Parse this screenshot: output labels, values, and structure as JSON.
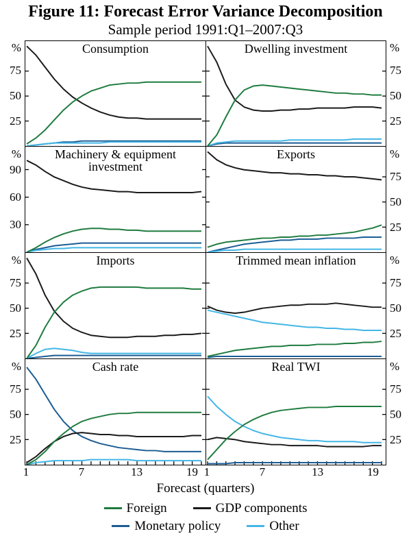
{
  "figure": {
    "title": "Figure 11: Forecast Error Variance Decomposition",
    "subtitle": "Sample period 1991:Q1–2007:Q3"
  },
  "x_axis": {
    "label": "Forecast (quarters)",
    "tick_labels": [
      1,
      7,
      13,
      19
    ],
    "range": [
      1,
      20
    ]
  },
  "colors": {
    "foreign": "#1e7b3e",
    "gdp_components": "#1a1a1a",
    "monetary_policy": "#1b5c94",
    "other": "#43b6e6"
  },
  "legend": [
    {
      "key": "foreign",
      "label": "Foreign"
    },
    {
      "key": "gdp_components",
      "label": "GDP components"
    },
    {
      "key": "monetary_policy",
      "label": "Monetary policy"
    },
    {
      "key": "other",
      "label": "Other"
    }
  ],
  "chart_data": [
    {
      "type": "line",
      "title": "Consumption",
      "unit": "%",
      "ylim": [
        0,
        105
      ],
      "yticks": [
        25,
        50,
        75
      ],
      "series": [
        {
          "name": "Monetary policy",
          "key": "monetary_policy",
          "values": [
            0,
            1,
            2,
            3,
            4,
            4,
            5,
            5,
            5,
            5,
            5,
            5,
            5,
            5,
            5,
            5,
            5,
            5,
            5,
            5
          ]
        },
        {
          "name": "Other",
          "key": "other",
          "values": [
            0,
            1,
            2,
            3,
            3,
            3,
            3,
            3,
            3,
            4,
            4,
            4,
            4,
            4,
            4,
            4,
            4,
            4,
            4,
            4
          ]
        },
        {
          "name": "GDP components",
          "key": "gdp_components",
          "values": [
            100,
            91,
            79,
            67,
            57,
            49,
            43,
            38,
            34,
            31,
            29,
            28,
            28,
            27,
            27,
            27,
            27,
            27,
            27,
            27
          ]
        },
        {
          "name": "Foreign",
          "key": "foreign",
          "values": [
            2,
            8,
            16,
            26,
            36,
            44,
            50,
            55,
            58,
            61,
            62,
            63,
            63,
            64,
            64,
            64,
            64,
            64,
            64,
            64
          ]
        }
      ]
    },
    {
      "type": "line",
      "title": "Dwelling investment",
      "unit": "%",
      "ylim": [
        0,
        105
      ],
      "yticks": [
        25,
        50,
        75
      ],
      "series": [
        {
          "name": "Monetary policy",
          "key": "monetary_policy",
          "values": [
            0,
            2,
            3,
            3,
            3,
            3,
            3,
            3,
            3,
            3,
            3,
            3,
            3,
            3,
            3,
            3,
            3,
            3,
            3,
            3
          ]
        },
        {
          "name": "Other",
          "key": "other",
          "values": [
            0,
            3,
            4,
            5,
            5,
            5,
            5,
            5,
            5,
            6,
            6,
            6,
            6,
            6,
            6,
            6,
            7,
            7,
            7,
            7
          ]
        },
        {
          "name": "GDP components",
          "key": "gdp_components",
          "values": [
            100,
            84,
            62,
            46,
            39,
            36,
            35,
            35,
            36,
            36,
            37,
            37,
            38,
            38,
            38,
            38,
            39,
            39,
            39,
            38
          ]
        },
        {
          "name": "Foreign",
          "key": "foreign",
          "values": [
            0,
            11,
            29,
            46,
            56,
            60,
            61,
            60,
            59,
            58,
            57,
            56,
            55,
            54,
            53,
            53,
            52,
            52,
            51,
            51
          ]
        }
      ]
    },
    {
      "type": "line",
      "title": "Machinery & equipment investment",
      "unit": "%",
      "ylim": [
        0,
        115
      ],
      "yticks": [
        30,
        60,
        90
      ],
      "series": [
        {
          "name": "Monetary policy",
          "key": "monetary_policy",
          "values": [
            0,
            3,
            5,
            7,
            8,
            9,
            10,
            10,
            10,
            10,
            10,
            10,
            10,
            10,
            10,
            10,
            10,
            10,
            10,
            10
          ]
        },
        {
          "name": "Other",
          "key": "other",
          "values": [
            0,
            2,
            3,
            4,
            4,
            5,
            5,
            5,
            5,
            5,
            5,
            5,
            5,
            5,
            5,
            5,
            5,
            5,
            5,
            5
          ]
        },
        {
          "name": "GDP components",
          "key": "gdp_components",
          "values": [
            100,
            95,
            88,
            82,
            78,
            74,
            71,
            69,
            68,
            67,
            66,
            66,
            65,
            65,
            65,
            65,
            65,
            65,
            65,
            66
          ]
        },
        {
          "name": "Foreign",
          "key": "foreign",
          "values": [
            0,
            5,
            11,
            16,
            20,
            23,
            25,
            26,
            26,
            25,
            25,
            24,
            24,
            23,
            23,
            23,
            23,
            23,
            23,
            23
          ]
        }
      ]
    },
    {
      "type": "line",
      "title": "Exports",
      "unit": "%",
      "ylim": [
        0,
        105
      ],
      "yticks": [
        25,
        50,
        75
      ],
      "series": [
        {
          "name": "Monetary policy",
          "key": "monetary_policy",
          "values": [
            0,
            2,
            4,
            6,
            8,
            9,
            10,
            11,
            12,
            12,
            13,
            13,
            13,
            14,
            14,
            14,
            14,
            15,
            15,
            15
          ]
        },
        {
          "name": "Other",
          "key": "other",
          "values": [
            0,
            1,
            2,
            2,
            3,
            3,
            3,
            3,
            3,
            3,
            3,
            3,
            3,
            3,
            3,
            3,
            3,
            3,
            3,
            3
          ]
        },
        {
          "name": "GDP components",
          "key": "gdp_components",
          "values": [
            100,
            92,
            87,
            84,
            82,
            81,
            80,
            79,
            79,
            78,
            78,
            77,
            77,
            76,
            76,
            75,
            75,
            74,
            73,
            72
          ]
        },
        {
          "name": "Foreign",
          "key": "foreign",
          "values": [
            5,
            8,
            10,
            11,
            12,
            13,
            14,
            14,
            15,
            15,
            16,
            16,
            17,
            17,
            18,
            19,
            20,
            22,
            24,
            27
          ]
        }
      ]
    },
    {
      "type": "line",
      "title": "Imports",
      "unit": "%",
      "ylim": [
        0,
        105
      ],
      "yticks": [
        25,
        50,
        75
      ],
      "series": [
        {
          "name": "Monetary policy",
          "key": "monetary_policy",
          "values": [
            0,
            1,
            2,
            3,
            3,
            3,
            3,
            3,
            3,
            3,
            3,
            3,
            3,
            3,
            3,
            3,
            3,
            3,
            3,
            3
          ]
        },
        {
          "name": "Other",
          "key": "other",
          "values": [
            0,
            5,
            9,
            10,
            9,
            8,
            6,
            5,
            5,
            5,
            5,
            5,
            5,
            5,
            5,
            5,
            5,
            5,
            5,
            5
          ]
        },
        {
          "name": "GDP components",
          "key": "gdp_components",
          "values": [
            100,
            84,
            63,
            47,
            37,
            30,
            26,
            23,
            22,
            21,
            21,
            21,
            22,
            22,
            22,
            23,
            23,
            24,
            24,
            25
          ]
        },
        {
          "name": "Foreign",
          "key": "foreign",
          "values": [
            0,
            13,
            31,
            46,
            56,
            63,
            67,
            70,
            71,
            71,
            71,
            71,
            71,
            70,
            70,
            70,
            70,
            70,
            69,
            69
          ]
        }
      ]
    },
    {
      "type": "line",
      "title": "Trimmed mean inflation",
      "unit": "%",
      "ylim": [
        0,
        105
      ],
      "yticks": [
        25,
        50,
        75
      ],
      "series": [
        {
          "name": "Monetary policy",
          "key": "monetary_policy",
          "values": [
            1,
            2,
            2,
            2,
            2,
            2,
            2,
            2,
            2,
            2,
            2,
            2,
            2,
            2,
            2,
            2,
            2,
            2,
            2,
            2
          ]
        },
        {
          "name": "Other",
          "key": "other",
          "values": [
            48,
            46,
            44,
            42,
            40,
            38,
            36,
            35,
            34,
            33,
            32,
            31,
            31,
            30,
            30,
            29,
            29,
            28,
            28,
            28
          ]
        },
        {
          "name": "GDP components",
          "key": "gdp_components",
          "values": [
            52,
            48,
            46,
            45,
            46,
            48,
            50,
            51,
            52,
            53,
            53,
            54,
            54,
            54,
            55,
            54,
            53,
            52,
            51,
            51
          ]
        },
        {
          "name": "Foreign",
          "key": "foreign",
          "values": [
            2,
            4,
            6,
            8,
            9,
            10,
            11,
            12,
            12,
            13,
            13,
            13,
            14,
            14,
            14,
            15,
            15,
            16,
            16,
            17
          ]
        }
      ]
    },
    {
      "type": "line",
      "title": "Cash rate",
      "unit": "%",
      "ylim": [
        0,
        105
      ],
      "yticks": [
        25,
        50,
        75
      ],
      "series": [
        {
          "name": "Monetary policy",
          "key": "monetary_policy",
          "values": [
            97,
            85,
            70,
            55,
            43,
            34,
            28,
            24,
            21,
            19,
            17,
            16,
            15,
            14,
            14,
            13,
            13,
            13,
            13,
            13
          ]
        },
        {
          "name": "Other",
          "key": "other",
          "values": [
            0,
            2,
            3,
            4,
            4,
            4,
            4,
            5,
            5,
            5,
            5,
            5,
            4,
            4,
            4,
            4,
            4,
            4,
            4,
            4
          ]
        },
        {
          "name": "GDP components",
          "key": "gdp_components",
          "values": [
            2,
            8,
            16,
            23,
            28,
            31,
            32,
            31,
            30,
            30,
            29,
            29,
            28,
            28,
            28,
            28,
            28,
            28,
            29,
            29
          ]
        },
        {
          "name": "Foreign",
          "key": "foreign",
          "values": [
            0,
            5,
            13,
            23,
            31,
            38,
            43,
            46,
            48,
            50,
            51,
            51,
            52,
            52,
            52,
            52,
            52,
            52,
            52,
            52
          ]
        }
      ]
    },
    {
      "type": "line",
      "title": "Real TWI",
      "unit": "%",
      "ylim": [
        0,
        105
      ],
      "yticks": [
        25,
        50,
        75
      ],
      "series": [
        {
          "name": "Monetary policy",
          "key": "monetary_policy",
          "values": [
            1,
            1,
            1,
            2,
            2,
            2,
            2,
            2,
            2,
            2,
            2,
            2,
            2,
            2,
            2,
            2,
            2,
            2,
            2,
            2
          ]
        },
        {
          "name": "Other",
          "key": "other",
          "values": [
            68,
            58,
            50,
            43,
            38,
            34,
            31,
            29,
            27,
            26,
            25,
            24,
            24,
            23,
            23,
            23,
            23,
            22,
            22,
            22
          ]
        },
        {
          "name": "GDP components",
          "key": "gdp_components",
          "values": [
            25,
            27,
            26,
            25,
            23,
            22,
            21,
            20,
            20,
            19,
            19,
            19,
            19,
            18,
            18,
            18,
            18,
            18,
            19,
            19
          ]
        },
        {
          "name": "Foreign",
          "key": "foreign",
          "values": [
            5,
            15,
            25,
            33,
            40,
            45,
            49,
            52,
            54,
            55,
            56,
            57,
            57,
            57,
            58,
            58,
            58,
            58,
            58,
            58
          ]
        }
      ]
    }
  ]
}
